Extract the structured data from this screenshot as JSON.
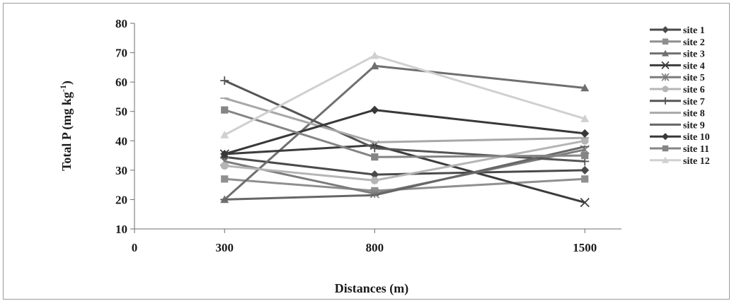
{
  "chart_data": {
    "type": "line",
    "title": "",
    "xlabel": "Distances (m)",
    "ylabel_main": "Total P (mg kg",
    "ylabel_sup": "-1",
    "ylabel_close": ")",
    "x": [
      300,
      800,
      1500
    ],
    "x_ticks": [
      "0",
      "300",
      "800",
      "1500"
    ],
    "ylim": [
      10,
      80
    ],
    "y_ticks": [
      "10",
      "20",
      "30",
      "40",
      "50",
      "60",
      "70",
      "80"
    ],
    "grid": false,
    "legend_position": "right",
    "series": [
      {
        "name": "site 1",
        "values": [
          34.5,
          28.5,
          30.0
        ],
        "color": "#4a4a4a",
        "marker": "diamond"
      },
      {
        "name": "site 2",
        "values": [
          27.0,
          23.0,
          27.0
        ],
        "color": "#8f8f8f",
        "marker": "square"
      },
      {
        "name": "site 3",
        "values": [
          20.0,
          65.5,
          58.0
        ],
        "color": "#6f6f6f",
        "marker": "triangle"
      },
      {
        "name": "site 4",
        "values": [
          35.5,
          38.5,
          19.0
        ],
        "color": "#3c3c3c",
        "marker": "x"
      },
      {
        "name": "site 5",
        "values": [
          33.0,
          22.0,
          37.0
        ],
        "color": "#7c7c7c",
        "marker": "asterisk"
      },
      {
        "name": "site 6",
        "values": [
          31.5,
          26.5,
          40.0
        ],
        "color": "#b5b5b5",
        "marker": "circle"
      },
      {
        "name": "site 7",
        "values": [
          60.5,
          37.5,
          33.0
        ],
        "color": "#555555",
        "marker": "plus"
      },
      {
        "name": "site 8",
        "values": [
          54.5,
          39.5,
          41.0
        ],
        "color": "#a8a8a8",
        "marker": "dash"
      },
      {
        "name": "site 9",
        "values": [
          20.0,
          21.5,
          38.0
        ],
        "color": "#666666",
        "marker": "dash"
      },
      {
        "name": "site 10",
        "values": [
          35.5,
          50.5,
          42.5
        ],
        "color": "#383838",
        "marker": "diamond"
      },
      {
        "name": "site 11",
        "values": [
          50.5,
          34.5,
          35.0
        ],
        "color": "#858585",
        "marker": "square"
      },
      {
        "name": "site 12",
        "values": [
          42.0,
          69.0,
          47.5
        ],
        "color": "#d0d0d0",
        "marker": "triangle"
      }
    ]
  }
}
